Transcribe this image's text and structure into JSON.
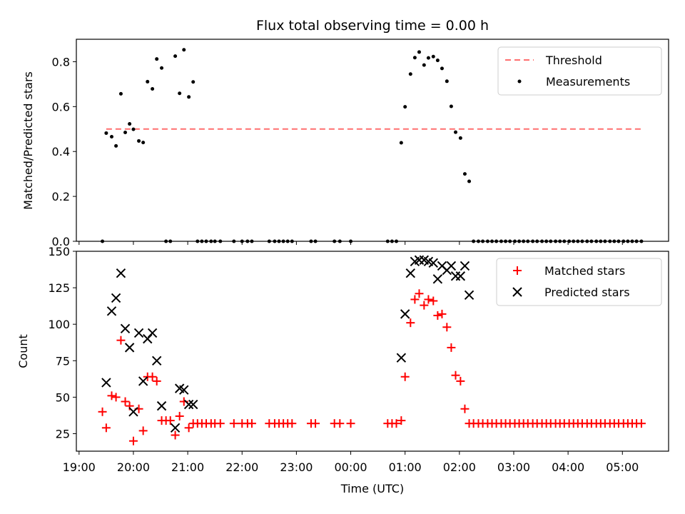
{
  "chart_data": [
    {
      "type": "scatter",
      "title": "Flux total observing time = 0.00 h",
      "xlabel": "",
      "ylabel": "Matched/Predicted stars",
      "ylim": [
        0,
        0.9
      ],
      "yticks": [
        "0.0",
        "0.2",
        "0.4",
        "0.6",
        "0.8"
      ],
      "x_range_hours": [
        18.95,
        29.85
      ],
      "legend": {
        "placement": "top-right",
        "entries": [
          "Threshold",
          "Measurements"
        ]
      },
      "threshold": {
        "name": "Threshold",
        "value": 0.5,
        "x": [
          19.5,
          29.4
        ],
        "color": "#ff6f6f"
      },
      "series": [
        {
          "name": "Measurements",
          "color": "#000000",
          "points": [
            [
              19.43,
              0
            ],
            [
              19.5,
              0.482
            ],
            [
              19.6,
              0.466
            ],
            [
              19.68,
              0.425
            ],
            [
              19.77,
              0.657
            ],
            [
              19.85,
              0.485
            ],
            [
              19.93,
              0.523
            ],
            [
              20.0,
              0.499
            ],
            [
              20.1,
              0.447
            ],
            [
              20.18,
              0.44
            ],
            [
              20.26,
              0.711
            ],
            [
              20.35,
              0.679
            ],
            [
              20.43,
              0.812
            ],
            [
              20.52,
              0.772
            ],
            [
              20.6,
              0
            ],
            [
              20.68,
              0
            ],
            [
              20.77,
              0.825
            ],
            [
              20.85,
              0.659
            ],
            [
              20.93,
              0.853
            ],
            [
              21.02,
              0.643
            ],
            [
              21.1,
              0.71
            ],
            [
              21.18,
              0
            ],
            [
              21.26,
              0
            ],
            [
              21.34,
              0
            ],
            [
              21.43,
              0
            ],
            [
              21.5,
              0
            ],
            [
              21.6,
              0
            ],
            [
              21.85,
              0
            ],
            [
              22.0,
              0
            ],
            [
              22.1,
              0
            ],
            [
              22.18,
              0
            ],
            [
              22.5,
              0
            ],
            [
              22.6,
              0
            ],
            [
              22.68,
              0
            ],
            [
              22.76,
              0
            ],
            [
              22.84,
              0
            ],
            [
              22.92,
              0
            ],
            [
              23.27,
              0
            ],
            [
              23.35,
              0
            ],
            [
              23.7,
              0
            ],
            [
              23.8,
              0
            ],
            [
              24.0,
              0
            ],
            [
              24.68,
              0
            ],
            [
              24.76,
              0
            ],
            [
              24.84,
              0
            ],
            [
              24.93,
              0.439
            ],
            [
              25.0,
              0.599
            ],
            [
              25.1,
              0.745
            ],
            [
              25.18,
              0.818
            ],
            [
              25.26,
              0.843
            ],
            [
              25.35,
              0.785
            ],
            [
              25.43,
              0.817
            ],
            [
              25.52,
              0.823
            ],
            [
              25.6,
              0.806
            ],
            [
              25.68,
              0.77
            ],
            [
              25.77,
              0.713
            ],
            [
              25.85,
              0.601
            ],
            [
              25.93,
              0.486
            ],
            [
              26.02,
              0.46
            ],
            [
              26.1,
              0.3
            ],
            [
              26.18,
              0.267
            ],
            [
              26.26,
              0
            ],
            [
              26.35,
              0
            ],
            [
              26.43,
              0
            ],
            [
              26.52,
              0
            ],
            [
              26.6,
              0
            ],
            [
              26.68,
              0
            ],
            [
              26.77,
              0
            ],
            [
              26.85,
              0
            ],
            [
              26.93,
              0
            ],
            [
              27.02,
              0
            ],
            [
              27.1,
              0
            ],
            [
              27.18,
              0
            ],
            [
              27.26,
              0
            ],
            [
              27.35,
              0
            ],
            [
              27.43,
              0
            ],
            [
              27.52,
              0
            ],
            [
              27.6,
              0
            ],
            [
              27.68,
              0
            ],
            [
              27.77,
              0
            ],
            [
              27.85,
              0
            ],
            [
              27.93,
              0
            ],
            [
              28.02,
              0
            ],
            [
              28.1,
              0
            ],
            [
              28.18,
              0
            ],
            [
              28.26,
              0
            ],
            [
              28.35,
              0
            ],
            [
              28.43,
              0
            ],
            [
              28.52,
              0
            ],
            [
              28.6,
              0
            ],
            [
              28.68,
              0
            ],
            [
              28.77,
              0
            ],
            [
              28.85,
              0
            ],
            [
              28.93,
              0
            ],
            [
              29.02,
              0
            ],
            [
              29.1,
              0
            ],
            [
              29.18,
              0
            ],
            [
              29.26,
              0
            ],
            [
              29.35,
              0
            ]
          ]
        }
      ],
      "grid": false
    },
    {
      "type": "scatter",
      "title": "",
      "xlabel": "Time (UTC)",
      "ylabel": "Count",
      "ylim": [
        13,
        150
      ],
      "yticks": [
        "25",
        "50",
        "75",
        "100",
        "125",
        "150"
      ],
      "x_range_hours": [
        18.95,
        29.85
      ],
      "xticks": [
        "19:00",
        "20:00",
        "21:00",
        "22:00",
        "23:00",
        "00:00",
        "01:00",
        "02:00",
        "03:00",
        "04:00",
        "05:00"
      ],
      "legend": {
        "placement": "top-right",
        "entries": [
          "Matched stars",
          "Predicted stars"
        ]
      },
      "series": [
        {
          "name": "Matched stars",
          "marker": "+",
          "color": "#ff0000",
          "points": [
            [
              19.43,
              40
            ],
            [
              19.5,
              29
            ],
            [
              19.6,
              51
            ],
            [
              19.68,
              50
            ],
            [
              19.77,
              89
            ],
            [
              19.85,
              47
            ],
            [
              19.93,
              44
            ],
            [
              20.0,
              20
            ],
            [
              20.1,
              42
            ],
            [
              20.18,
              27
            ],
            [
              20.26,
              64
            ],
            [
              20.35,
              64
            ],
            [
              20.43,
              61
            ],
            [
              20.52,
              34
            ],
            [
              20.6,
              34
            ],
            [
              20.68,
              34
            ],
            [
              20.77,
              24
            ],
            [
              20.85,
              37
            ],
            [
              20.93,
              47
            ],
            [
              21.02,
              29
            ],
            [
              21.1,
              32
            ],
            [
              21.18,
              32
            ],
            [
              21.26,
              32
            ],
            [
              21.34,
              32
            ],
            [
              21.43,
              32
            ],
            [
              21.5,
              32
            ],
            [
              21.6,
              32
            ],
            [
              21.85,
              32
            ],
            [
              22.0,
              32
            ],
            [
              22.1,
              32
            ],
            [
              22.18,
              32
            ],
            [
              22.5,
              32
            ],
            [
              22.6,
              32
            ],
            [
              22.68,
              32
            ],
            [
              22.76,
              32
            ],
            [
              22.84,
              32
            ],
            [
              22.92,
              32
            ],
            [
              23.27,
              32
            ],
            [
              23.35,
              32
            ],
            [
              23.7,
              32
            ],
            [
              23.8,
              32
            ],
            [
              24.0,
              32
            ],
            [
              24.68,
              32
            ],
            [
              24.76,
              32
            ],
            [
              24.84,
              32
            ],
            [
              24.93,
              34
            ],
            [
              25.0,
              64
            ],
            [
              25.1,
              101
            ],
            [
              25.18,
              117
            ],
            [
              25.26,
              121
            ],
            [
              25.35,
              113
            ],
            [
              25.43,
              117
            ],
            [
              25.52,
              116
            ],
            [
              25.6,
              106
            ],
            [
              25.68,
              107
            ],
            [
              25.77,
              98
            ],
            [
              25.85,
              84
            ],
            [
              25.93,
              65
            ],
            [
              26.02,
              61
            ],
            [
              26.1,
              42
            ],
            [
              26.18,
              32
            ],
            [
              26.26,
              32
            ],
            [
              26.35,
              32
            ],
            [
              26.43,
              32
            ],
            [
              26.52,
              32
            ],
            [
              26.6,
              32
            ],
            [
              26.68,
              32
            ],
            [
              26.77,
              32
            ],
            [
              26.85,
              32
            ],
            [
              26.93,
              32
            ],
            [
              27.02,
              32
            ],
            [
              27.1,
              32
            ],
            [
              27.18,
              32
            ],
            [
              27.26,
              32
            ],
            [
              27.35,
              32
            ],
            [
              27.43,
              32
            ],
            [
              27.52,
              32
            ],
            [
              27.6,
              32
            ],
            [
              27.68,
              32
            ],
            [
              27.77,
              32
            ],
            [
              27.85,
              32
            ],
            [
              27.93,
              32
            ],
            [
              28.02,
              32
            ],
            [
              28.1,
              32
            ],
            [
              28.18,
              32
            ],
            [
              28.26,
              32
            ],
            [
              28.35,
              32
            ],
            [
              28.43,
              32
            ],
            [
              28.52,
              32
            ],
            [
              28.6,
              32
            ],
            [
              28.68,
              32
            ],
            [
              28.77,
              32
            ],
            [
              28.85,
              32
            ],
            [
              28.93,
              32
            ],
            [
              29.02,
              32
            ],
            [
              29.1,
              32
            ],
            [
              29.18,
              32
            ],
            [
              29.26,
              32
            ],
            [
              29.35,
              32
            ]
          ]
        },
        {
          "name": "Predicted stars",
          "marker": "x",
          "color": "#000000",
          "points": [
            [
              19.5,
              60
            ],
            [
              19.6,
              109
            ],
            [
              19.68,
              118
            ],
            [
              19.77,
              135
            ],
            [
              19.85,
              97
            ],
            [
              19.93,
              84
            ],
            [
              20.0,
              40
            ],
            [
              20.1,
              94
            ],
            [
              20.18,
              61
            ],
            [
              20.26,
              90
            ],
            [
              20.35,
              94
            ],
            [
              20.43,
              75
            ],
            [
              20.52,
              44
            ],
            [
              20.77,
              29
            ],
            [
              20.85,
              56
            ],
            [
              20.93,
              55
            ],
            [
              21.02,
              45
            ],
            [
              21.1,
              45
            ],
            [
              24.93,
              77
            ],
            [
              25.0,
              107
            ],
            [
              25.1,
              135
            ],
            [
              25.18,
              143
            ],
            [
              25.26,
              144
            ],
            [
              25.35,
              144
            ],
            [
              25.43,
              143
            ],
            [
              25.52,
              142
            ],
            [
              25.6,
              131
            ],
            [
              25.68,
              140
            ],
            [
              25.77,
              137
            ],
            [
              25.85,
              140
            ],
            [
              25.93,
              133
            ],
            [
              26.02,
              133
            ],
            [
              26.1,
              140
            ],
            [
              26.18,
              120
            ]
          ]
        }
      ],
      "grid": false
    }
  ]
}
